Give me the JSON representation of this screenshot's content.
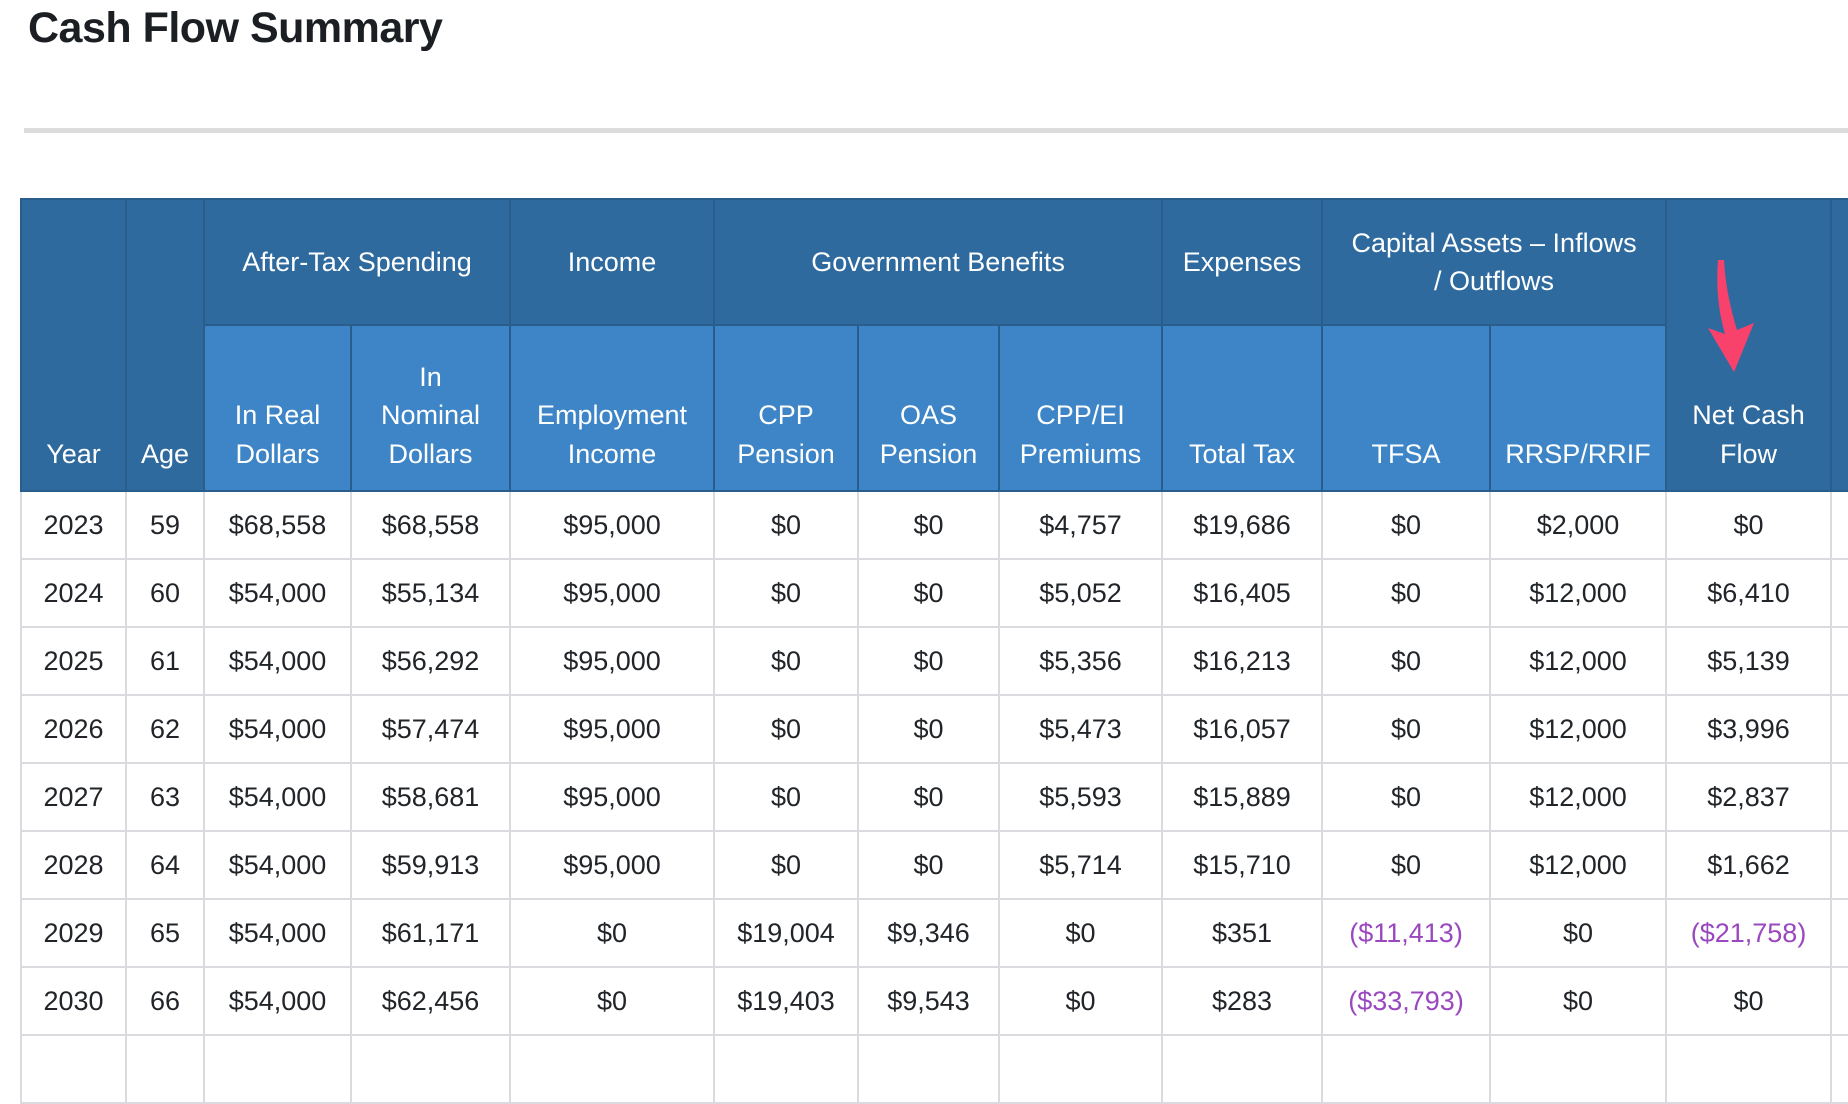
{
  "title": "Cash Flow Summary",
  "colors": {
    "header_dark_blue": "#2f6a9e",
    "header_light_blue": "#3d85c6",
    "header_border": "#285d8c",
    "body_border": "#d9dbdf",
    "negative_value": "#9a48bf",
    "annotation_arrow_pink": "#f8426c"
  },
  "annotations": {
    "arrow": {
      "name": "pink-down-arrow",
      "points_at": "Net Cash Flow column header"
    }
  },
  "table": {
    "header": {
      "year": "Year",
      "age": "Age",
      "net_cash_flow": "Net Cash Flow",
      "groups": [
        {
          "label": "After-Tax Spending",
          "span": 2
        },
        {
          "label": "Income",
          "span": 1
        },
        {
          "label": "Government Benefits",
          "span": 3
        },
        {
          "label": "Expenses",
          "span": 1
        },
        {
          "label": "Capital Assets – Inflows / Outflows",
          "span": 2
        }
      ],
      "subcolumns": [
        "In Real Dollars",
        "In Nominal Dollars",
        "Employment Income",
        "CPP Pension",
        "OAS Pension",
        "CPP/EI Premiums",
        "Total Tax",
        "TFSA",
        "RRSP/RRIF"
      ]
    },
    "rows": [
      [
        "2023",
        "59",
        "$68,558",
        "$68,558",
        "$95,000",
        "$0",
        "$0",
        "$4,757",
        "$19,686",
        "$0",
        "$2,000",
        "$0"
      ],
      [
        "2024",
        "60",
        "$54,000",
        "$55,134",
        "$95,000",
        "$0",
        "$0",
        "$5,052",
        "$16,405",
        "$0",
        "$12,000",
        "$6,410"
      ],
      [
        "2025",
        "61",
        "$54,000",
        "$56,292",
        "$95,000",
        "$0",
        "$0",
        "$5,356",
        "$16,213",
        "$0",
        "$12,000",
        "$5,139"
      ],
      [
        "2026",
        "62",
        "$54,000",
        "$57,474",
        "$95,000",
        "$0",
        "$0",
        "$5,473",
        "$16,057",
        "$0",
        "$12,000",
        "$3,996"
      ],
      [
        "2027",
        "63",
        "$54,000",
        "$58,681",
        "$95,000",
        "$0",
        "$0",
        "$5,593",
        "$15,889",
        "$0",
        "$12,000",
        "$2,837"
      ],
      [
        "2028",
        "64",
        "$54,000",
        "$59,913",
        "$95,000",
        "$0",
        "$0",
        "$5,714",
        "$15,710",
        "$0",
        "$12,000",
        "$1,662"
      ],
      [
        "2029",
        "65",
        "$54,000",
        "$61,171",
        "$0",
        "$19,004",
        "$9,346",
        "$0",
        "$351",
        "($11,413)",
        "$0",
        "($21,758)"
      ],
      [
        "2030",
        "66",
        "$54,000",
        "$62,456",
        "$0",
        "$19,403",
        "$9,543",
        "$0",
        "$283",
        "($33,793)",
        "$0",
        "$0"
      ]
    ]
  }
}
